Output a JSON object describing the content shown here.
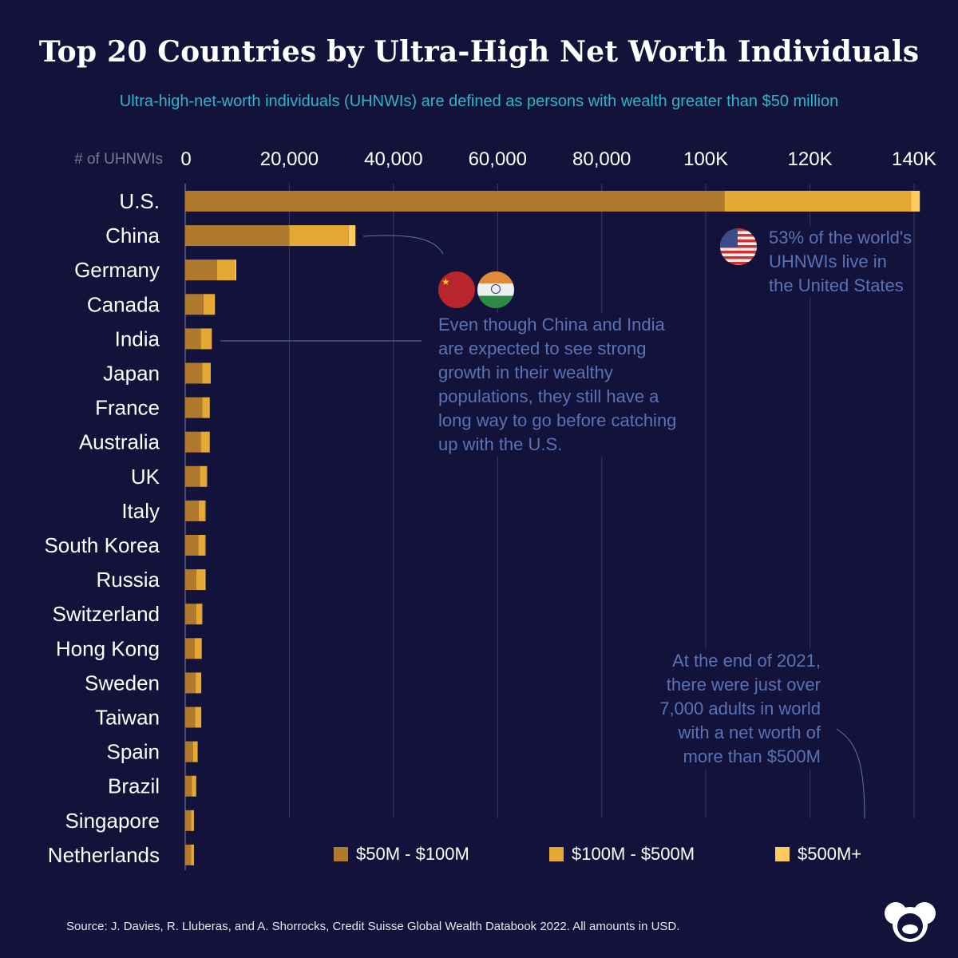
{
  "title": "Top 20 Countries by Ultra-High Net Worth Individuals",
  "subtitle": "Ultra-high-net-worth individuals (UHNWIs) are defined as persons with wealth greater than $50 million",
  "chart_data": {
    "type": "bar",
    "orientation": "horizontal",
    "stacked": true,
    "axis_label": "# of UHNWIs",
    "xlim": [
      0,
      140000
    ],
    "ticks": [
      0,
      20000,
      40000,
      60000,
      80000,
      100000,
      120000,
      140000
    ],
    "tick_labels": [
      "0",
      "20,000",
      "40,000",
      "60,000",
      "80,000",
      "100K",
      "120K",
      "140K"
    ],
    "grid": true,
    "legend_position": "bottom-right",
    "categories": [
      "U.S.",
      "China",
      "Germany",
      "Canada",
      "India",
      "Japan",
      "France",
      "Australia",
      "UK",
      "Italy",
      "South Korea",
      "Russia",
      "Switzerland",
      "Hong Kong",
      "Sweden",
      "Taiwan",
      "Spain",
      "Brazil",
      "Singapore",
      "Netherlands"
    ],
    "series": [
      {
        "name": "$50M - $100M",
        "color": "#b07a2e",
        "values": [
          103600,
          20000,
          6100,
          3500,
          3000,
          3300,
          3300,
          3000,
          2800,
          2600,
          2500,
          2100,
          2100,
          1800,
          2000,
          1900,
          1500,
          1300,
          1100,
          1100
        ]
      },
      {
        "name": "$100M - $500M",
        "color": "#e5a833",
        "values": [
          35800,
          11400,
          3400,
          2100,
          2000,
          1500,
          1200,
          1600,
          1300,
          1200,
          1300,
          1600,
          1100,
          1300,
          1000,
          1100,
          800,
          700,
          500,
          500
        ]
      },
      {
        "name": "$500M+",
        "color": "#fdcb5e",
        "values": [
          1700,
          1300,
          300,
          100,
          100,
          100,
          200,
          100,
          100,
          100,
          100,
          200,
          50,
          50,
          50,
          50,
          50,
          100,
          50,
          50
        ]
      }
    ]
  },
  "annotations": {
    "us": "53% of the world's UHNWIs live in the United States",
    "china_india": "Even though China and India are expected to see strong growth in their wealthy populations, they still have a long way to go before catching up with the U.S.",
    "top": "At the end of 2021, there were just over 7,000 adults in world with a net worth of more than $500M"
  },
  "source": "Source: J. Davies, R. Lluberas, and A. Shorrocks, Credit Suisse Global Wealth Databook 2022. All amounts in USD.",
  "colors": {
    "background": "#12123b",
    "subtitle": "#2fb5c8",
    "annotation": "#5a73b5"
  }
}
